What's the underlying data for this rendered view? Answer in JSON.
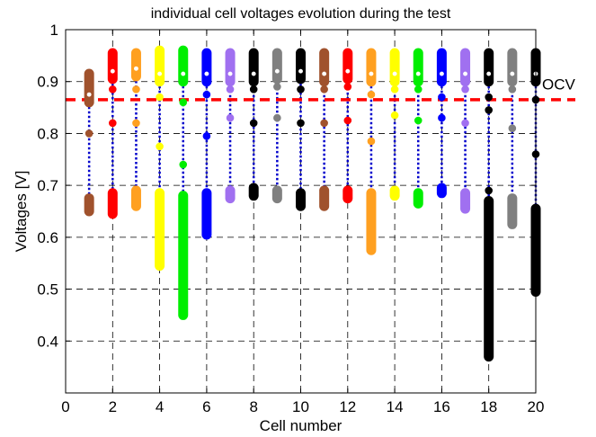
{
  "chart_data": {
    "type": "scatter",
    "title": "individual cell voltages evolution during the test",
    "xlabel": "Cell number",
    "ylabel": "Voltages [V]",
    "xlim": [
      0,
      20
    ],
    "ylim": [
      0.3,
      1.0
    ],
    "xticks": [
      0,
      2,
      4,
      6,
      8,
      10,
      12,
      14,
      16,
      18,
      20
    ],
    "yticks": [
      0.4,
      0.5,
      0.6,
      0.7,
      0.8,
      0.9,
      1
    ],
    "xtick_labels": [
      "0",
      "2",
      "4",
      "6",
      "8",
      "10",
      "12",
      "14",
      "16",
      "18",
      "20"
    ],
    "ytick_labels": [
      "0.4",
      "0.5",
      "0.6",
      "0.7",
      "0.8",
      "0.9",
      "1"
    ],
    "grid": true,
    "ocv": {
      "label": "OCV",
      "value": 0.865,
      "color": "#ff0000"
    },
    "connector_color": "#0000cc",
    "series": [
      {
        "cell": 1,
        "color": "#a0522d",
        "low": [
          0.65,
          0.675
        ],
        "high": [
          0.86,
          0.915
        ],
        "mid": [
          0.8
        ]
      },
      {
        "cell": 2,
        "color": "#ff0000",
        "low": [
          0.645,
          0.685
        ],
        "high": [
          0.905,
          0.955
        ],
        "mid": [
          0.885,
          0.82
        ]
      },
      {
        "cell": 3,
        "color": "#ffa020",
        "low": [
          0.66,
          0.69
        ],
        "high": [
          0.91,
          0.955
        ],
        "mid": [
          0.885,
          0.82
        ]
      },
      {
        "cell": 4,
        "color": "#ffff00",
        "low": [
          0.545,
          0.685
        ],
        "high": [
          0.9,
          0.96
        ],
        "mid": [
          0.87,
          0.775
        ]
      },
      {
        "cell": 5,
        "color": "#00ee00",
        "low": [
          0.45,
          0.68
        ],
        "high": [
          0.9,
          0.96
        ],
        "mid": [
          0.86,
          0.74
        ]
      },
      {
        "cell": 6,
        "color": "#0000ff",
        "low": [
          0.605,
          0.685
        ],
        "high": [
          0.9,
          0.955
        ],
        "mid": [
          0.875,
          0.795
        ]
      },
      {
        "cell": 7,
        "color": "#a070f0",
        "low": [
          0.675,
          0.69
        ],
        "high": [
          0.9,
          0.955
        ],
        "mid": [
          0.885,
          0.83
        ]
      },
      {
        "cell": 8,
        "color": "#000000",
        "low": [
          0.68,
          0.695
        ],
        "high": [
          0.9,
          0.955
        ],
        "mid": [
          0.885,
          0.82
        ]
      },
      {
        "cell": 9,
        "color": "#808080",
        "low": [
          0.675,
          0.69
        ],
        "high": [
          0.905,
          0.955
        ],
        "mid": [
          0.89,
          0.83
        ]
      },
      {
        "cell": 10,
        "color": "#000000",
        "low": [
          0.66,
          0.685
        ],
        "high": [
          0.905,
          0.955
        ],
        "mid": [
          0.885,
          0.82
        ]
      },
      {
        "cell": 11,
        "color": "#a0522d",
        "low": [
          0.66,
          0.69
        ],
        "high": [
          0.9,
          0.955
        ],
        "mid": [
          0.885,
          0.82
        ]
      },
      {
        "cell": 12,
        "color": "#ff0000",
        "low": [
          0.675,
          0.69
        ],
        "high": [
          0.905,
          0.955
        ],
        "mid": [
          0.89,
          0.825
        ]
      },
      {
        "cell": 13,
        "color": "#ffa020",
        "low": [
          0.575,
          0.685
        ],
        "high": [
          0.9,
          0.955
        ],
        "mid": [
          0.875,
          0.785
        ]
      },
      {
        "cell": 14,
        "color": "#ffff00",
        "low": [
          0.68,
          0.69
        ],
        "high": [
          0.9,
          0.955
        ],
        "mid": [
          0.885,
          0.835
        ]
      },
      {
        "cell": 15,
        "color": "#00ee00",
        "low": [
          0.665,
          0.685
        ],
        "high": [
          0.9,
          0.955
        ],
        "mid": [
          0.885,
          0.825
        ]
      },
      {
        "cell": 16,
        "color": "#0000ff",
        "low": [
          0.685,
          0.695
        ],
        "high": [
          0.9,
          0.955
        ],
        "mid": [
          0.87,
          0.83
        ]
      },
      {
        "cell": 17,
        "color": "#a070f0",
        "low": [
          0.655,
          0.685
        ],
        "high": [
          0.9,
          0.955
        ],
        "mid": [
          0.885,
          0.82
        ]
      },
      {
        "cell": 18,
        "color": "#000000",
        "low": [
          0.37,
          0.67
        ],
        "high": [
          0.9,
          0.955
        ],
        "mid": [
          0.87,
          0.845,
          0.69
        ]
      },
      {
        "cell": 19,
        "color": "#808080",
        "low": [
          0.625,
          0.675
        ],
        "high": [
          0.9,
          0.955
        ],
        "mid": [
          0.885,
          0.81
        ]
      },
      {
        "cell": 20,
        "color": "#000000",
        "low": [
          0.495,
          0.655
        ],
        "high": [
          0.9,
          0.955
        ],
        "mid": [
          0.865,
          0.76
        ]
      }
    ]
  }
}
